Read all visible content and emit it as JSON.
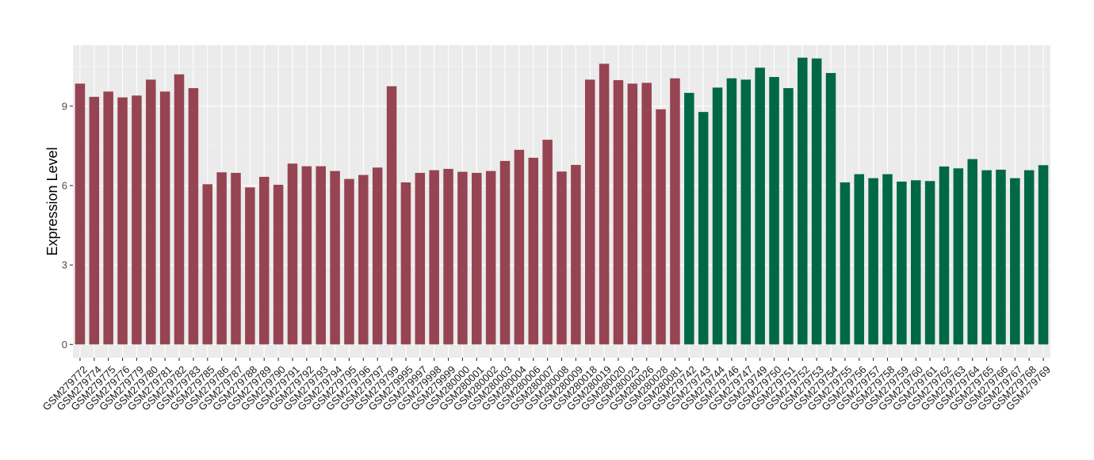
{
  "chart_data": {
    "type": "bar",
    "title": "",
    "xlabel": "",
    "ylabel": "Expression Level",
    "ylim": [
      -0.5,
      11.3
    ],
    "yticks": [
      0,
      3,
      6,
      9
    ],
    "grid": true,
    "legend": "none",
    "categories": [
      "GSM279772",
      "GSM279774",
      "GSM279775",
      "GSM279776",
      "GSM279779",
      "GSM279780",
      "GSM279781",
      "GSM279782",
      "GSM279783",
      "GSM279785",
      "GSM279786",
      "GSM279787",
      "GSM279788",
      "GSM279789",
      "GSM279790",
      "GSM279791",
      "GSM279792",
      "GSM279793",
      "GSM279794",
      "GSM279795",
      "GSM279796",
      "GSM279797",
      "GSM279799",
      "GSM279995",
      "GSM279997",
      "GSM279998",
      "GSM279999",
      "GSM280000",
      "GSM280001",
      "GSM280002",
      "GSM280003",
      "GSM280004",
      "GSM280006",
      "GSM280007",
      "GSM280008",
      "GSM280009",
      "GSM280018",
      "GSM280019",
      "GSM280020",
      "GSM280023",
      "GSM280026",
      "GSM280028",
      "GSM280081",
      "GSM279742",
      "GSM279743",
      "GSM279744",
      "GSM279746",
      "GSM279747",
      "GSM279749",
      "GSM279750",
      "GSM279751",
      "GSM279752",
      "GSM279753",
      "GSM279754",
      "GSM279755",
      "GSM279756",
      "GSM279757",
      "GSM279758",
      "GSM279759",
      "GSM279760",
      "GSM279761",
      "GSM279762",
      "GSM279763",
      "GSM279764",
      "GSM279765",
      "GSM279766",
      "GSM279767",
      "GSM279768",
      "GSM279769"
    ],
    "values": [
      9.85,
      9.35,
      9.55,
      9.33,
      9.4,
      10.0,
      9.55,
      10.2,
      9.68,
      6.05,
      6.5,
      6.48,
      5.93,
      6.33,
      6.03,
      6.83,
      6.73,
      6.73,
      6.55,
      6.25,
      6.4,
      6.68,
      9.75,
      6.12,
      6.48,
      6.58,
      6.63,
      6.52,
      6.48,
      6.55,
      6.93,
      7.35,
      7.05,
      7.73,
      6.53,
      6.78,
      10.0,
      10.6,
      9.98,
      9.85,
      9.88,
      8.88,
      10.05,
      9.5,
      8.78,
      9.7,
      10.05,
      10.0,
      10.45,
      10.1,
      9.68,
      10.83,
      10.8,
      10.25,
      6.12,
      6.43,
      6.28,
      6.43,
      6.15,
      6.2,
      6.17,
      6.72,
      6.65,
      7.0,
      6.58,
      6.6,
      6.28,
      6.58,
      6.77
    ],
    "groups": [
      {
        "color": "#964451",
        "start": 0,
        "count": 43
      },
      {
        "color": "#006846",
        "start": 43,
        "count": 26
      }
    ],
    "colors": {
      "panel_background": "#ebebeb",
      "grid_major": "#ffffff",
      "grid_minor": "#f5f5f5"
    }
  }
}
